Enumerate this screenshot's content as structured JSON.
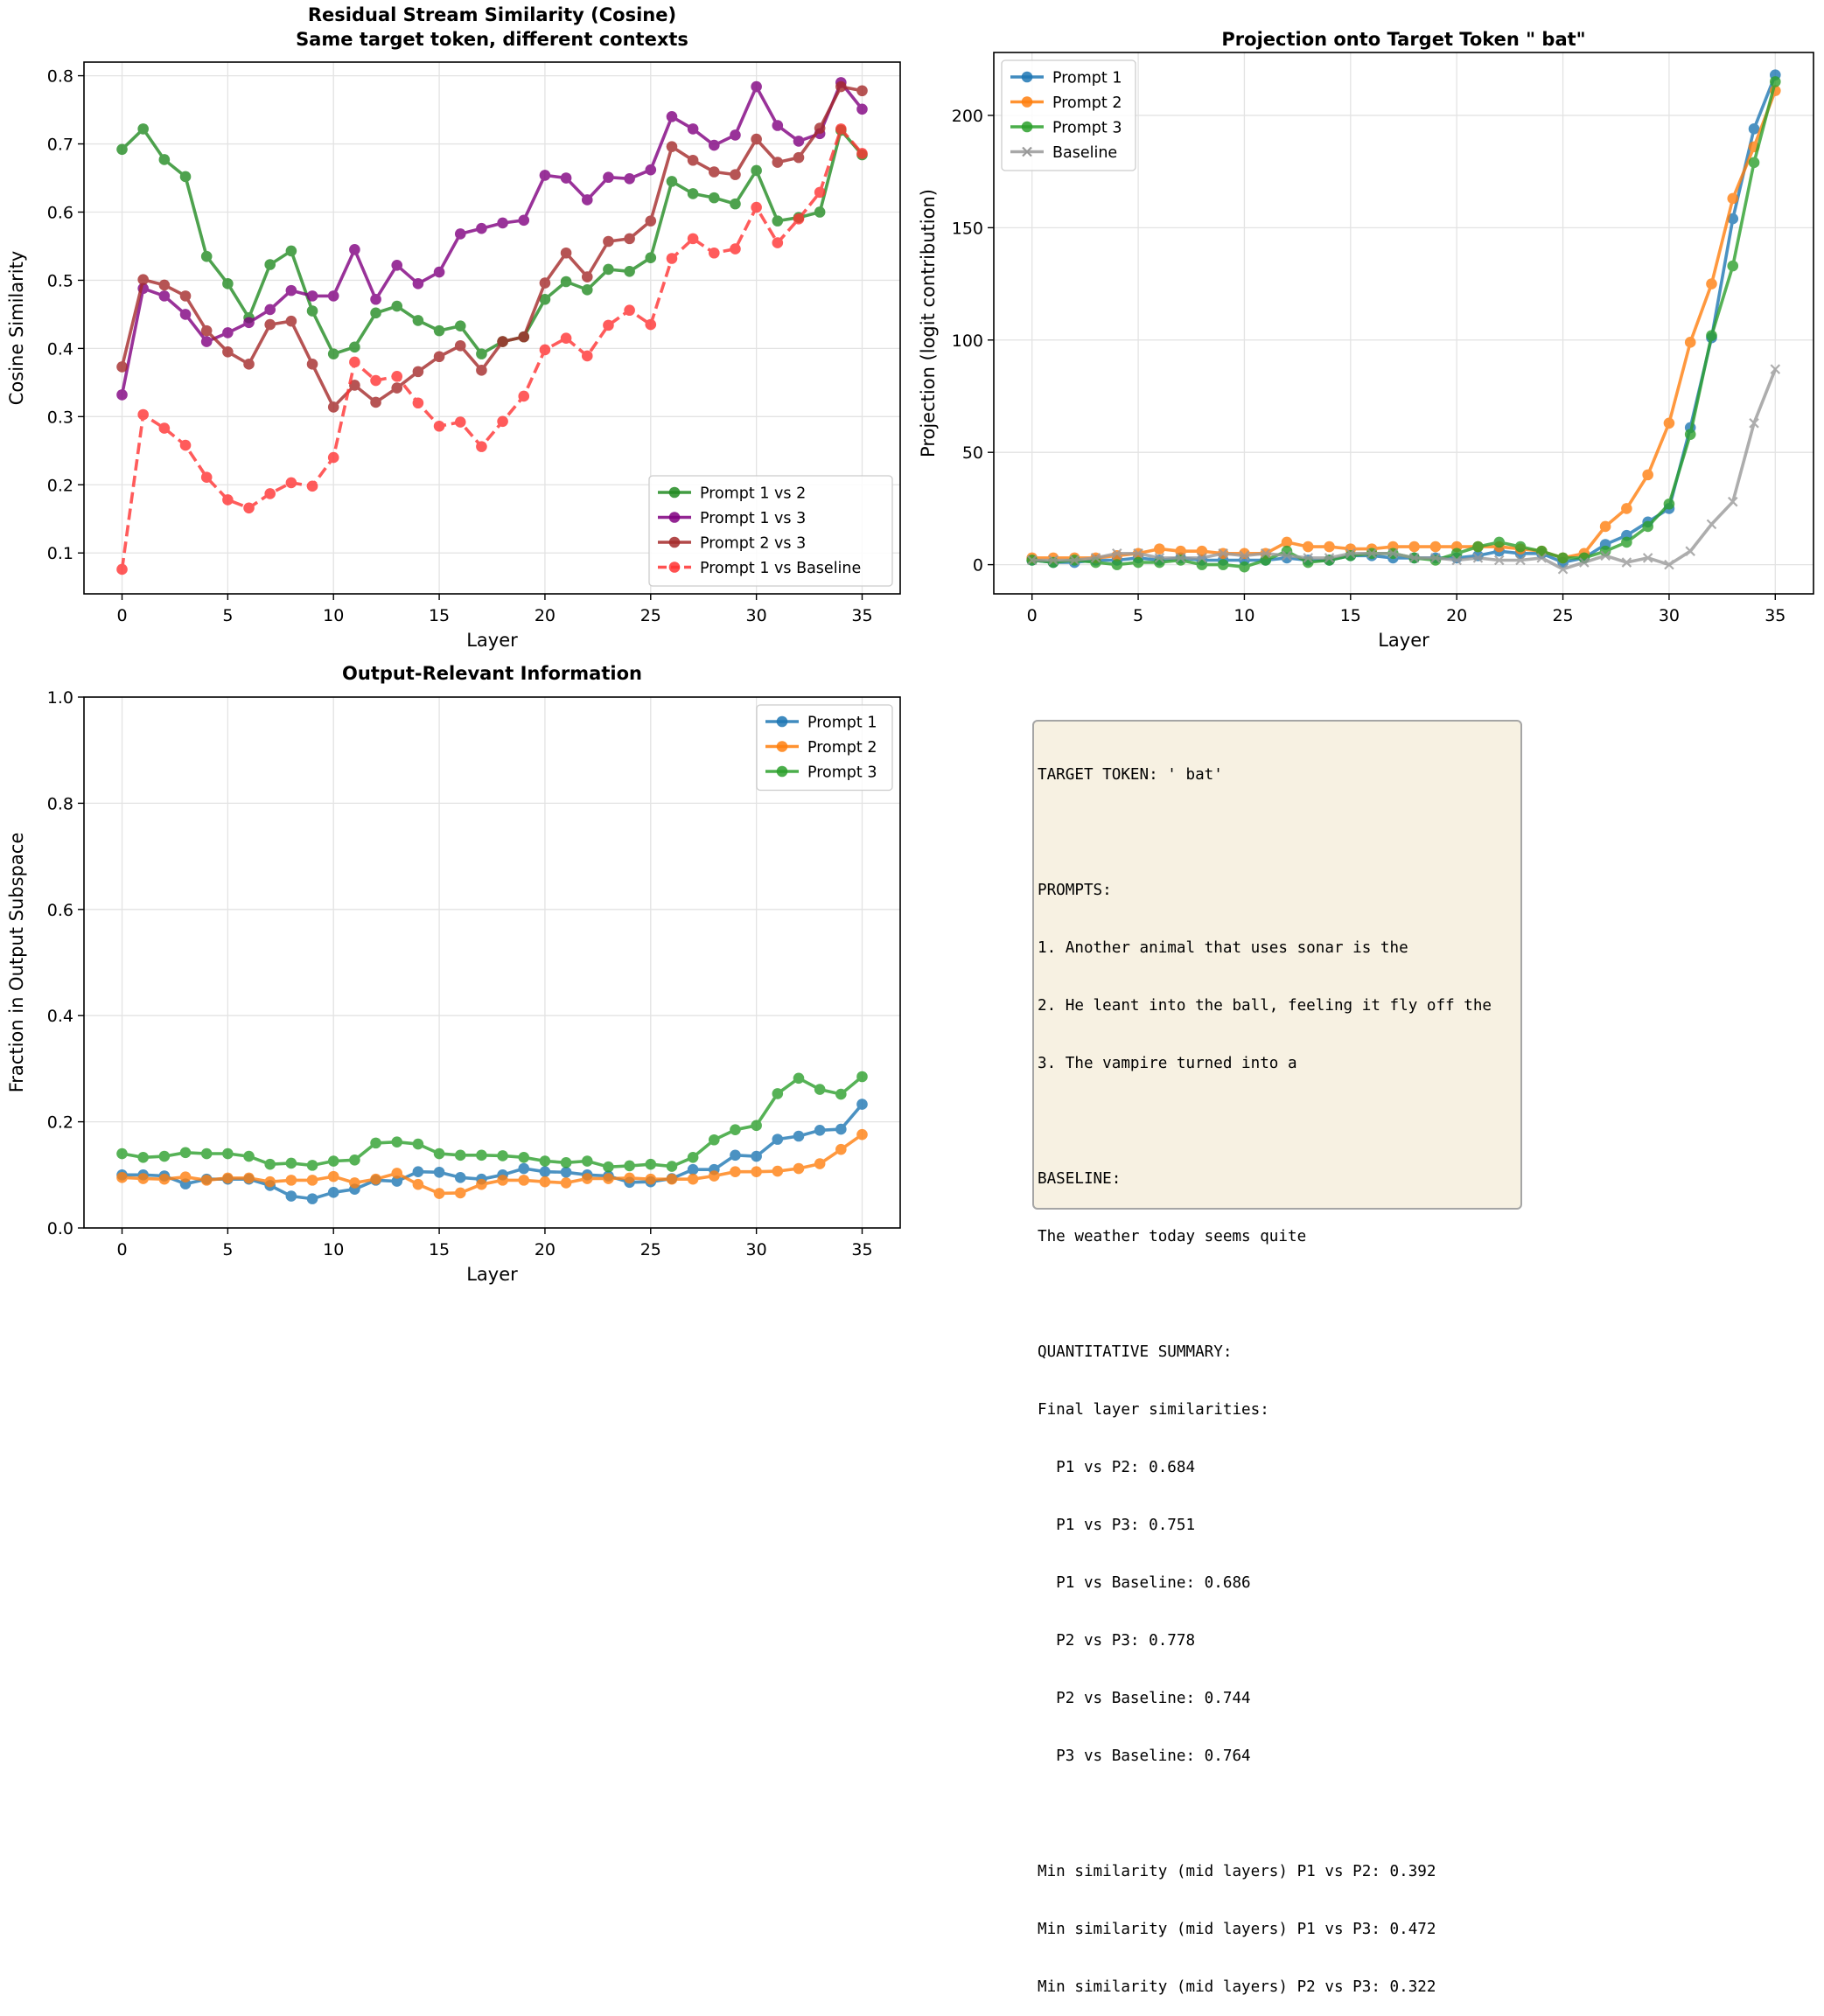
{
  "colors": {
    "green": "#228b22",
    "purple": "#800080",
    "brown": "#a52a2a",
    "red": "#ff3333",
    "blue": "#1f77b4",
    "orange": "#ff7f0e",
    "green2": "#2ca02c",
    "gray": "#8c8c8c"
  },
  "chart_data": [
    {
      "type": "line",
      "title": "Residual Stream Similarity (Cosine)",
      "subtitle": "Same target token, different contexts",
      "xlabel": "Layer",
      "ylabel": "Cosine Similarity",
      "xlim": [
        -1.8,
        36.8
      ],
      "ylim": [
        0.04,
        0.82
      ],
      "xticks": [
        0,
        5,
        10,
        15,
        20,
        25,
        30,
        35
      ],
      "yticks": [
        0.1,
        0.2,
        0.3,
        0.4,
        0.5,
        0.6,
        0.7,
        0.8
      ],
      "ytick_labels": [
        "0.1",
        "0.2",
        "0.3",
        "0.4",
        "0.5",
        "0.6",
        "0.7",
        "0.8"
      ],
      "grid": true,
      "legend_position": "lower-right",
      "series": [
        {
          "name": "Prompt 1 vs 2",
          "color": "#228b22",
          "marker": "o",
          "dash": false,
          "values": [
            0.692,
            0.722,
            0.677,
            0.652,
            0.535,
            0.495,
            0.445,
            0.523,
            0.543,
            0.455,
            0.392,
            0.402,
            0.452,
            0.462,
            0.441,
            0.426,
            0.433,
            0.392,
            0.41,
            0.417,
            0.472,
            0.498,
            0.486,
            0.516,
            0.513,
            0.533,
            0.645,
            0.627,
            0.621,
            0.612,
            0.661,
            0.587,
            0.592,
            0.6,
            0.72,
            0.684
          ]
        },
        {
          "name": "Prompt 1 vs 3",
          "color": "#800080",
          "marker": "o",
          "dash": false,
          "values": [
            0.332,
            0.488,
            0.477,
            0.45,
            0.41,
            0.423,
            0.438,
            0.457,
            0.485,
            0.477,
            0.477,
            0.545,
            0.472,
            0.522,
            0.495,
            0.512,
            0.568,
            0.576,
            0.584,
            0.588,
            0.654,
            0.65,
            0.618,
            0.651,
            0.649,
            0.662,
            0.74,
            0.722,
            0.698,
            0.713,
            0.784,
            0.727,
            0.704,
            0.715,
            0.79,
            0.751
          ]
        },
        {
          "name": "Prompt 2 vs 3",
          "color": "#a52a2a",
          "marker": "o",
          "dash": false,
          "values": [
            0.373,
            0.501,
            0.493,
            0.477,
            0.426,
            0.395,
            0.377,
            0.435,
            0.44,
            0.377,
            0.314,
            0.346,
            0.321,
            0.342,
            0.366,
            0.388,
            0.404,
            0.368,
            0.41,
            0.417,
            0.496,
            0.54,
            0.505,
            0.557,
            0.561,
            0.587,
            0.696,
            0.676,
            0.659,
            0.655,
            0.707,
            0.673,
            0.68,
            0.723,
            0.784,
            0.778
          ]
        },
        {
          "name": "Prompt 1 vs Baseline",
          "color": "#ff3333",
          "marker": "o",
          "dash": true,
          "values": [
            0.076,
            0.303,
            0.283,
            0.258,
            0.211,
            0.178,
            0.166,
            0.187,
            0.203,
            0.198,
            0.24,
            0.38,
            0.353,
            0.359,
            0.32,
            0.286,
            0.292,
            0.256,
            0.293,
            0.33,
            0.398,
            0.415,
            0.389,
            0.434,
            0.456,
            0.435,
            0.532,
            0.561,
            0.54,
            0.546,
            0.607,
            0.555,
            0.59,
            0.629,
            0.722,
            0.686
          ]
        }
      ]
    },
    {
      "type": "line",
      "title": "Projection onto Target Token \" bat\"",
      "xlabel": "Layer",
      "ylabel": "Projection (logit contribution)",
      "xlim": [
        -1.8,
        36.8
      ],
      "ylim": [
        -13,
        228
      ],
      "xticks": [
        0,
        5,
        10,
        15,
        20,
        25,
        30,
        35
      ],
      "yticks": [
        0,
        50,
        100,
        150,
        200
      ],
      "ytick_labels": [
        "0",
        "50",
        "100",
        "150",
        "200"
      ],
      "grid": true,
      "legend_position": "upper-left",
      "series": [
        {
          "name": "Prompt 1",
          "color": "#1f77b4",
          "marker": "o",
          "values": [
            2,
            1,
            1,
            2,
            2,
            3,
            2,
            3,
            2,
            2,
            2,
            2,
            3,
            2,
            2,
            4,
            4,
            3,
            3,
            3,
            3,
            4,
            6,
            5,
            5,
            1,
            3,
            9,
            13,
            19,
            25,
            61,
            101,
            154,
            194,
            218
          ]
        },
        {
          "name": "Prompt 2",
          "color": "#ff7f0e",
          "marker": "o",
          "values": [
            3,
            3,
            3,
            3,
            4,
            5,
            7,
            6,
            6,
            5,
            5,
            5,
            10,
            8,
            8,
            7,
            7,
            8,
            8,
            8,
            8,
            8,
            8,
            7,
            6,
            3,
            5,
            17,
            25,
            40,
            63,
            99,
            125,
            163,
            186,
            211
          ]
        },
        {
          "name": "Prompt 3",
          "color": "#2ca02c",
          "marker": "o",
          "values": [
            2,
            1,
            2,
            1,
            0,
            1,
            1,
            2,
            0,
            0,
            -1,
            2,
            6,
            1,
            2,
            4,
            5,
            5,
            3,
            2,
            5,
            8,
            10,
            8,
            6,
            3,
            3,
            6,
            10,
            17,
            27,
            58,
            102,
            133,
            179,
            215
          ]
        },
        {
          "name": "Baseline",
          "color": "#999999",
          "marker": "x",
          "values": [
            2,
            2,
            2,
            3,
            5,
            5,
            3,
            3,
            3,
            5,
            4,
            5,
            4,
            3,
            3,
            5,
            5,
            5,
            3,
            3,
            2,
            3,
            2,
            2,
            3,
            -2,
            1,
            4,
            1,
            3,
            0,
            6,
            18,
            28,
            63,
            87
          ]
        }
      ]
    },
    {
      "type": "line",
      "title": "Output-Relevant Information",
      "xlabel": "Layer",
      "ylabel": "Fraction in Output Subspace",
      "xlim": [
        -1.8,
        36.8
      ],
      "ylim": [
        0.0,
        1.0
      ],
      "xticks": [
        0,
        5,
        10,
        15,
        20,
        25,
        30,
        35
      ],
      "yticks": [
        0.0,
        0.2,
        0.4,
        0.6,
        0.8,
        1.0
      ],
      "ytick_labels": [
        "0.0",
        "0.2",
        "0.4",
        "0.6",
        "0.8",
        "1.0"
      ],
      "grid": true,
      "legend_position": "upper-right",
      "series": [
        {
          "name": "Prompt 1",
          "color": "#1f77b4",
          "marker": "o",
          "values": [
            0.1,
            0.1,
            0.098,
            0.083,
            0.092,
            0.092,
            0.092,
            0.08,
            0.06,
            0.055,
            0.067,
            0.073,
            0.09,
            0.088,
            0.106,
            0.105,
            0.095,
            0.092,
            0.1,
            0.112,
            0.106,
            0.105,
            0.1,
            0.098,
            0.086,
            0.087,
            0.093,
            0.11,
            0.11,
            0.137,
            0.135,
            0.167,
            0.173,
            0.184,
            0.186,
            0.233
          ]
        },
        {
          "name": "Prompt 2",
          "color": "#ff7f0e",
          "marker": "o",
          "values": [
            0.095,
            0.093,
            0.092,
            0.096,
            0.09,
            0.094,
            0.094,
            0.087,
            0.09,
            0.09,
            0.097,
            0.085,
            0.092,
            0.103,
            0.082,
            0.065,
            0.066,
            0.082,
            0.09,
            0.09,
            0.087,
            0.085,
            0.093,
            0.093,
            0.094,
            0.092,
            0.092,
            0.092,
            0.098,
            0.106,
            0.106,
            0.107,
            0.112,
            0.121,
            0.148,
            0.176
          ]
        },
        {
          "name": "Prompt 3",
          "color": "#2ca02c",
          "marker": "o",
          "values": [
            0.14,
            0.133,
            0.135,
            0.142,
            0.14,
            0.14,
            0.135,
            0.12,
            0.122,
            0.118,
            0.126,
            0.128,
            0.16,
            0.162,
            0.158,
            0.14,
            0.137,
            0.137,
            0.136,
            0.133,
            0.126,
            0.123,
            0.126,
            0.115,
            0.117,
            0.12,
            0.116,
            0.133,
            0.166,
            0.185,
            0.193,
            0.253,
            0.282,
            0.261,
            0.252,
            0.285
          ]
        }
      ]
    }
  ],
  "summary": {
    "lines": [
      "TARGET TOKEN: ' bat'",
      "",
      "PROMPTS:",
      "1. Another animal that uses sonar is the",
      "2. He leant into the ball, feeling it fly off the",
      "3. The vampire turned into a",
      "",
      "BASELINE:",
      "The weather today seems quite",
      "",
      "QUANTITATIVE SUMMARY:",
      "Final layer similarities:",
      "  P1 vs P2: 0.684",
      "  P1 vs P3: 0.751",
      "  P1 vs Baseline: 0.686",
      "  P2 vs P3: 0.778",
      "  P2 vs Baseline: 0.744",
      "  P3 vs Baseline: 0.764",
      "",
      "Min similarity (mid layers) P1 vs P2: 0.392",
      "Min similarity (mid layers) P1 vs P3: 0.472",
      "Min similarity (mid layers) P2 vs P3: 0.322"
    ]
  }
}
